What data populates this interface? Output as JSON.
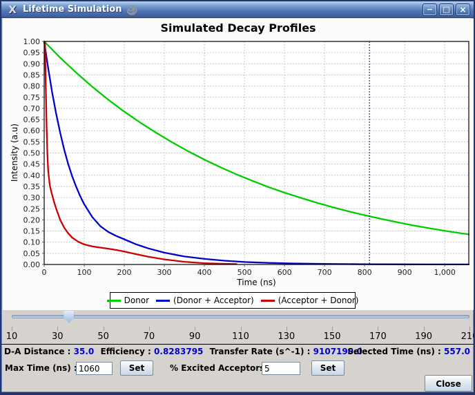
{
  "window": {
    "title": "Lifetime Simulation",
    "app_icon_glyph": "X",
    "controls": {
      "minimize": "−",
      "maximize": "□",
      "close": "×"
    }
  },
  "chart_data": {
    "type": "line",
    "title": "Simulated Decay Profiles",
    "xlabel": "Time (ns)",
    "ylabel": "Intensity (a.u)",
    "xlim": [
      0,
      1060
    ],
    "ylim": [
      0,
      1
    ],
    "grid": "dashed",
    "legend_position": "bottom",
    "crosshair_t": 812,
    "x_tick_values": [
      0,
      100,
      200,
      300,
      400,
      500,
      600,
      700,
      800,
      900,
      1000
    ],
    "x_tick_labels": [
      "0",
      "100",
      "200",
      "300",
      "400",
      "500",
      "600",
      "700",
      "800",
      "900",
      "1,000"
    ],
    "y_tick_values": [
      0,
      0.05,
      0.1,
      0.15,
      0.2,
      0.25,
      0.3,
      0.35,
      0.4,
      0.45,
      0.5,
      0.55,
      0.6,
      0.65,
      0.7,
      0.75,
      0.8,
      0.85,
      0.9,
      0.95,
      1.0
    ],
    "y_tick_labels": [
      "0.00",
      "0.05",
      "0.10",
      "0.15",
      "0.20",
      "0.25",
      "0.30",
      "0.35",
      "0.40",
      "0.45",
      "0.50",
      "0.55",
      "0.60",
      "0.65",
      "0.70",
      "0.75",
      "0.80",
      "0.85",
      "0.90",
      "0.95",
      "1.00"
    ],
    "series": [
      {
        "name": "Donor",
        "color": "#00cc00",
        "x": [
          0,
          40,
          80,
          120,
          160,
          200,
          240,
          280,
          320,
          360,
          400,
          440,
          480,
          520,
          560,
          600,
          640,
          680,
          720,
          760,
          800,
          840,
          880,
          920,
          960,
          1000,
          1040,
          1060
        ],
        "y": [
          1.0,
          0.927,
          0.86,
          0.797,
          0.739,
          0.685,
          0.636,
          0.59,
          0.547,
          0.507,
          0.47,
          0.436,
          0.404,
          0.375,
          0.347,
          0.322,
          0.299,
          0.277,
          0.257,
          0.238,
          0.221,
          0.205,
          0.19,
          0.176,
          0.163,
          0.151,
          0.14,
          0.135
        ]
      },
      {
        "name": "(Donor + Acceptor)",
        "color": "#0000cc",
        "x": [
          0,
          10,
          20,
          30,
          40,
          50,
          60,
          70,
          80,
          90,
          100,
          120,
          140,
          160,
          180,
          200,
          230,
          260,
          300,
          350,
          400,
          450,
          500,
          560,
          620,
          700,
          800,
          900,
          1000,
          1060
        ],
        "y": [
          1.0,
          0.88,
          0.77,
          0.675,
          0.59,
          0.515,
          0.45,
          0.395,
          0.348,
          0.306,
          0.27,
          0.213,
          0.172,
          0.146,
          0.128,
          0.113,
          0.09,
          0.072,
          0.053,
          0.036,
          0.025,
          0.017,
          0.011,
          0.007,
          0.0045,
          0.0025,
          0.0012,
          0.0006,
          0.0003,
          0.0002
        ]
      },
      {
        "name": "(Acceptor + Donor)",
        "color": "#cc0000",
        "x": [
          0,
          2,
          4,
          6,
          8,
          10,
          14,
          18,
          24,
          30,
          40,
          50,
          60,
          70,
          85,
          100,
          120,
          140,
          160,
          180,
          200,
          230,
          260,
          300,
          350,
          400,
          440,
          480
        ],
        "y": [
          1.0,
          0.995,
          0.8,
          0.62,
          0.5,
          0.42,
          0.355,
          0.325,
          0.285,
          0.25,
          0.2,
          0.165,
          0.14,
          0.12,
          0.102,
          0.09,
          0.081,
          0.076,
          0.071,
          0.065,
          0.058,
          0.046,
          0.035,
          0.023,
          0.012,
          0.006,
          0.0035,
          0.002
        ]
      }
    ]
  },
  "slider": {
    "min": 10,
    "max": 210,
    "value": 35,
    "tick_labels": [
      "10",
      "30",
      "50",
      "70",
      "90",
      "110",
      "130",
      "150",
      "170",
      "190",
      "210"
    ]
  },
  "status": {
    "da_label": "D-A Distance :",
    "da_value": "35.0",
    "eff_label": "Efficiency :",
    "eff_value": "0.8283795",
    "rate_label": "Transfer Rate (s^-1) :",
    "rate_value": "9107190.0",
    "sel_label": "Selected Time (ns) :",
    "sel_value": "557.0"
  },
  "controls": {
    "max_time": {
      "label": "Max Time (ns) :",
      "value": "1060",
      "button": "Set"
    },
    "excited": {
      "label": "% Excited Acceptors :",
      "value": "5",
      "button": "Set"
    },
    "close_label": "Close"
  }
}
